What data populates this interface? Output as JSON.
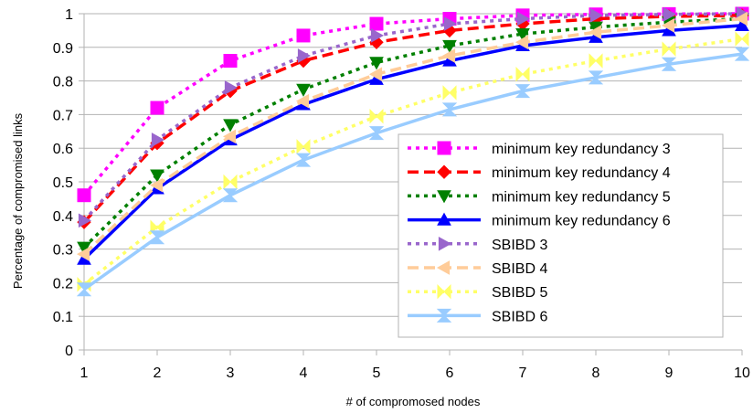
{
  "chart_data": {
    "type": "line",
    "xlabel": "# of compromosed nodes",
    "ylabel": "Percentage of compromised links",
    "x": [
      1,
      2,
      3,
      4,
      5,
      6,
      7,
      8,
      9,
      10
    ],
    "xlim": [
      1,
      10
    ],
    "ylim": [
      0,
      1
    ],
    "yticks": [
      "0",
      "0.1",
      "0.2",
      "0.3",
      "0.4",
      "0.5",
      "0.6",
      "0.7",
      "0.8",
      "0.9",
      "1"
    ],
    "xticks": [
      "1",
      "2",
      "3",
      "4",
      "5",
      "6",
      "7",
      "8",
      "9",
      "10"
    ],
    "grid": "horizontal",
    "legend_position": "right",
    "series": [
      {
        "name": "minimum key redundancy 3",
        "color": "#ff00ff",
        "dash": "dotted",
        "marker": "square",
        "values": [
          0.46,
          0.72,
          0.86,
          0.935,
          0.97,
          0.985,
          0.995,
          0.998,
          0.999,
          1.0
        ]
      },
      {
        "name": "minimum key redundancy 4",
        "color": "#ff0000",
        "dash": "dashed",
        "marker": "diamond",
        "values": [
          0.38,
          0.615,
          0.77,
          0.86,
          0.915,
          0.95,
          0.97,
          0.985,
          0.992,
          0.995
        ]
      },
      {
        "name": "minimum key redundancy 5",
        "color": "#008000",
        "dash": "dotted",
        "marker": "triangle-down",
        "values": [
          0.305,
          0.52,
          0.67,
          0.775,
          0.855,
          0.905,
          0.94,
          0.96,
          0.975,
          0.985
        ]
      },
      {
        "name": "minimum key redundancy 6",
        "color": "#0000ff",
        "dash": "solid",
        "marker": "triangle-up",
        "values": [
          0.27,
          0.48,
          0.625,
          0.73,
          0.805,
          0.86,
          0.905,
          0.93,
          0.95,
          0.965
        ]
      },
      {
        "name": "SBIBD 3",
        "color": "#9966cc",
        "dash": "dotted",
        "marker": "triangle-right",
        "values": [
          0.385,
          0.625,
          0.78,
          0.875,
          0.935,
          0.97,
          0.985,
          0.995,
          0.998,
          1.0
        ]
      },
      {
        "name": "SBIBD 4",
        "color": "#ffcc99",
        "dash": "dashed",
        "marker": "triangle-left",
        "values": [
          0.285,
          0.49,
          0.635,
          0.74,
          0.82,
          0.875,
          0.915,
          0.945,
          0.965,
          0.985
        ]
      },
      {
        "name": "SBIBD 5",
        "color": "#ffff66",
        "dash": "dotted",
        "marker": "bowtie-h",
        "values": [
          0.195,
          0.365,
          0.5,
          0.605,
          0.695,
          0.765,
          0.82,
          0.86,
          0.895,
          0.925
        ]
      },
      {
        "name": "SBIBD 6",
        "color": "#99ccff",
        "dash": "solid",
        "marker": "bowtie-v",
        "values": [
          0.18,
          0.335,
          0.46,
          0.565,
          0.645,
          0.715,
          0.77,
          0.81,
          0.85,
          0.88
        ]
      }
    ]
  }
}
